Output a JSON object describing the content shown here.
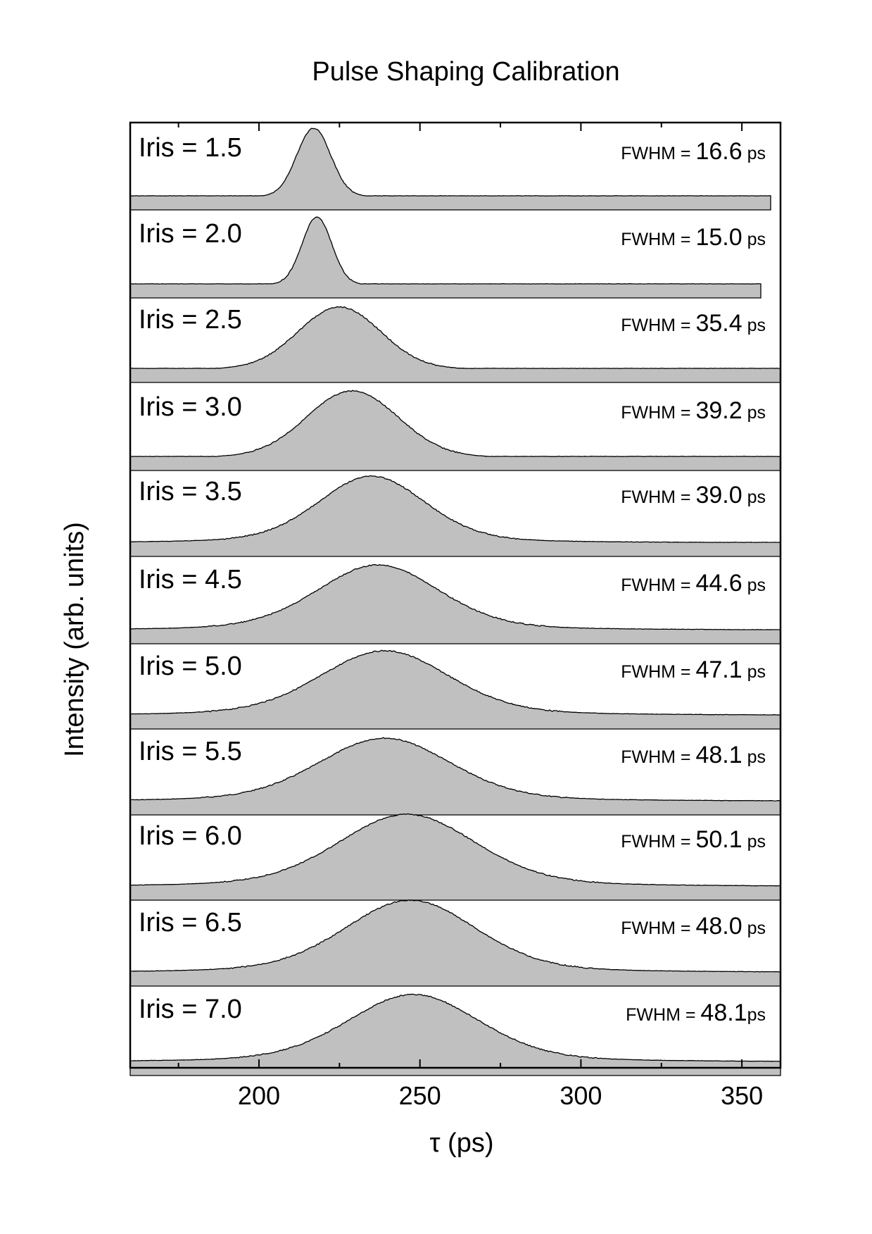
{
  "chart_data": {
    "type": "area",
    "title": "Pulse Shaping Calibration",
    "xlabel": "τ (ps)",
    "ylabel": "Intensity (arb. units)",
    "xlim": [
      160,
      362
    ],
    "x_ticks": [
      {
        "value": 200,
        "label": "200"
      },
      {
        "value": 250,
        "label": "250"
      },
      {
        "value": 300,
        "label": "300"
      },
      {
        "value": 350,
        "label": "350"
      }
    ],
    "x_minor_ticks": [
      175,
      225,
      275,
      325
    ],
    "fill_color": "#c0c0c0",
    "line_color": "#000000",
    "series": [
      {
        "name": "Iris = 1.5",
        "center": 217,
        "fwhm": 16.6,
        "width_factor": 0.75,
        "end_x": 359,
        "fwhm_text": "FWHM = ",
        "fwhm_value": "16.6",
        "fwhm_unit": " ps"
      },
      {
        "name": "Iris = 2.0",
        "center": 218,
        "fwhm": 15.0,
        "width_factor": 0.72,
        "end_x": 356,
        "fwhm_text": "FWHM = ",
        "fwhm_value": "15.0",
        "fwhm_unit": " ps"
      },
      {
        "name": "Iris = 2.5",
        "center": 225,
        "fwhm": 35.4,
        "width_factor": 0.85,
        "end_x": 362,
        "fwhm_text": "FWHM = ",
        "fwhm_value": "35.4",
        "fwhm_unit": " ps"
      },
      {
        "name": "Iris = 3.0",
        "center": 229,
        "fwhm": 39.2,
        "width_factor": 0.85,
        "end_x": 362,
        "fwhm_text": "FWHM = ",
        "fwhm_value": "39.2",
        "fwhm_unit": " ps"
      },
      {
        "name": "Iris = 3.5",
        "center": 235,
        "fwhm": 39.0,
        "width_factor": 1.0,
        "end_x": 362,
        "fwhm_text": "FWHM = ",
        "fwhm_value": "39.0",
        "fwhm_unit": " ps"
      },
      {
        "name": "Iris = 4.5",
        "center": 237,
        "fwhm": 44.6,
        "width_factor": 1.0,
        "end_x": 362,
        "fwhm_text": "FWHM = ",
        "fwhm_value": "44.6",
        "fwhm_unit": " ps"
      },
      {
        "name": "Iris = 5.0",
        "center": 239,
        "fwhm": 47.1,
        "width_factor": 1.0,
        "end_x": 362,
        "fwhm_text": "FWHM = ",
        "fwhm_value": "47.1",
        "fwhm_unit": " ps"
      },
      {
        "name": "Iris = 5.5",
        "center": 239,
        "fwhm": 48.1,
        "width_factor": 1.0,
        "end_x": 362,
        "fwhm_text": "FWHM = ",
        "fwhm_value": "48.1",
        "fwhm_unit": " ps"
      },
      {
        "name": "Iris = 6.0",
        "center": 246,
        "fwhm": 50.1,
        "width_factor": 1.0,
        "end_x": 362,
        "fwhm_text": "FWHM = ",
        "fwhm_value": "50.1",
        "fwhm_unit": " ps"
      },
      {
        "name": "Iris = 6.5",
        "center": 247,
        "fwhm": 48.0,
        "width_factor": 1.0,
        "end_x": 362,
        "fwhm_text": "FWHM = ",
        "fwhm_value": "48.0",
        "fwhm_unit": " ps"
      },
      {
        "name": "Iris = 7.0",
        "center": 248,
        "fwhm": 48.1,
        "width_factor": 1.0,
        "end_x": 362,
        "fwhm_text": "FWHM = ",
        "fwhm_value": "48.1",
        "fwhm_unit": "ps"
      }
    ]
  }
}
